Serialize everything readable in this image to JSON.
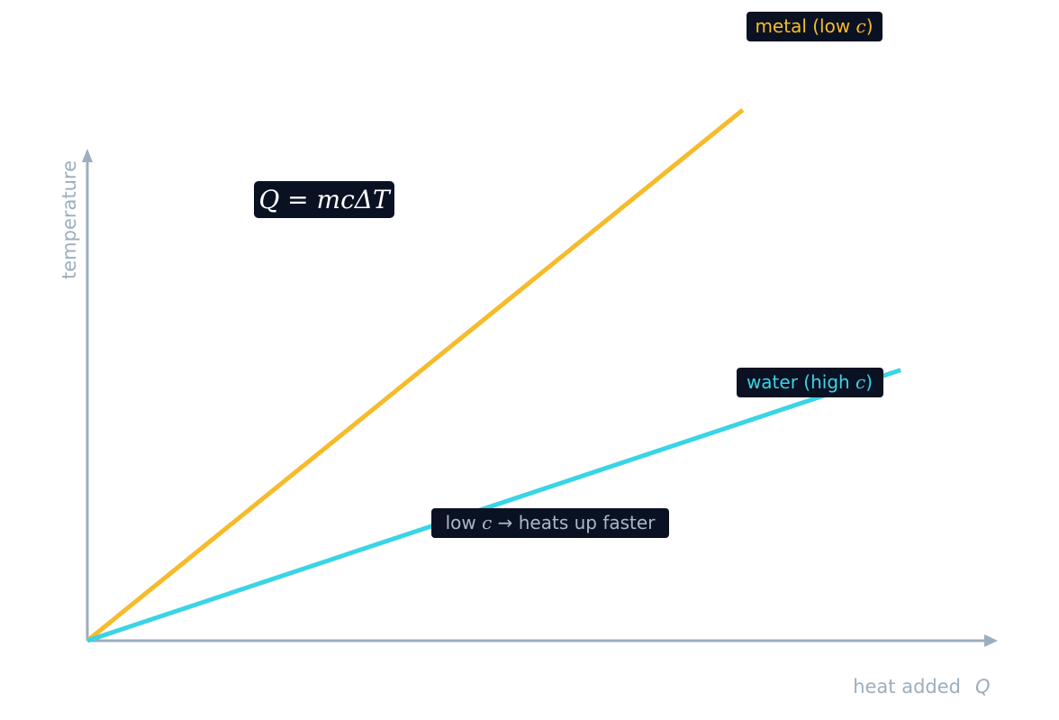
{
  "chart_data": {
    "type": "line",
    "xlabel": "heat added",
    "xlabel_symbol": "Q",
    "ylabel": "temperature",
    "xlim": [
      0,
      1
    ],
    "ylim": [
      0,
      1
    ],
    "grid": false,
    "series": [
      {
        "name": "metal (low c)",
        "name_prefix": "metal (low ",
        "name_symbol": "c",
        "name_suffix": ")",
        "color": "#f6bb2b",
        "x": [
          0,
          0.787
        ],
        "y": [
          0,
          1.09
        ]
      },
      {
        "name": "water (high c)",
        "name_prefix": "water (high ",
        "name_symbol": "c",
        "name_suffix": ")",
        "color": "#3ad4e6",
        "x": [
          0,
          0.896
        ],
        "y": [
          0,
          0.51
        ]
      }
    ],
    "formula": {
      "lhs": "Q",
      "eq": " = ",
      "rhs": "mcΔT"
    },
    "annotation": {
      "prefix": "low ",
      "symbol": "c",
      "suffix": " → heats up faster",
      "color": "#aab8c6"
    },
    "colors": {
      "axis": "#9caebf",
      "label_box": "#0a1122"
    }
  }
}
